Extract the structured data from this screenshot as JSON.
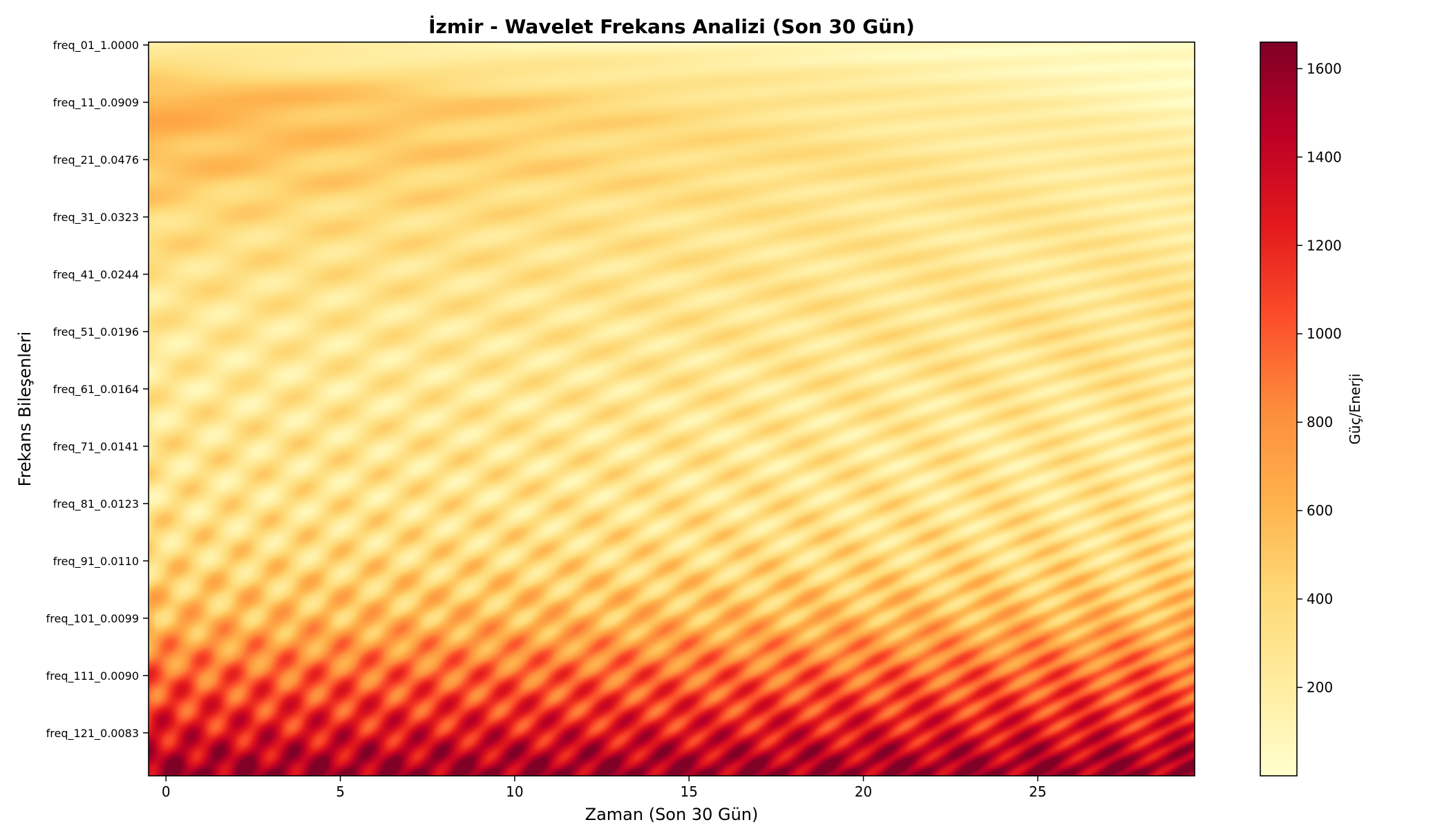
{
  "chart_data": {
    "type": "heatmap",
    "title": "İzmir - Wavelet Frekans Analizi (Son 30 Gün)",
    "xlabel": "Zaman (Son 30 Gün)",
    "ylabel": "Frekans Bileşenleri",
    "xlim": [
      -0.5,
      29.5
    ],
    "x_ticks": [
      0,
      5,
      10,
      15,
      20,
      25
    ],
    "x_tick_labels": [
      "0",
      "5",
      "10",
      "15",
      "20",
      "25"
    ],
    "y_row_count": 128,
    "y_tick_rows": [
      0,
      10,
      20,
      30,
      40,
      50,
      60,
      70,
      80,
      90,
      100,
      110,
      120
    ],
    "y_tick_labels": [
      "freq_01_1.0000",
      "freq_11_0.0909",
      "freq_21_0.0476",
      "freq_31_0.0323",
      "freq_41_0.0244",
      "freq_51_0.0196",
      "freq_61_0.0164",
      "freq_71_0.0141",
      "freq_81_0.0123",
      "freq_91_0.0110",
      "freq_101_0.0099",
      "freq_111_0.0090",
      "freq_121_0.0083"
    ],
    "colorbar": {
      "label": "Güç/Enerji",
      "range": [
        0,
        1660
      ],
      "ticks": [
        200,
        400,
        600,
        800,
        1000,
        1200,
        1400,
        1600
      ],
      "tick_labels": [
        "200",
        "400",
        "600",
        "800",
        "1000",
        "1200",
        "1400",
        "1600"
      ],
      "colormap": "YlOrRd"
    },
    "power_profile": {
      "description_rows": [
        0,
        10,
        20,
        30,
        40,
        50,
        60,
        70,
        80,
        90,
        100,
        110,
        120,
        127
      ],
      "mean_power_left": [
        150,
        650,
        560,
        400,
        330,
        260,
        250,
        300,
        300,
        380,
        560,
        950,
        1250,
        1550
      ],
      "mean_power_right": [
        60,
        80,
        200,
        240,
        270,
        320,
        300,
        260,
        300,
        360,
        560,
        950,
        1250,
        1550
      ]
    }
  }
}
